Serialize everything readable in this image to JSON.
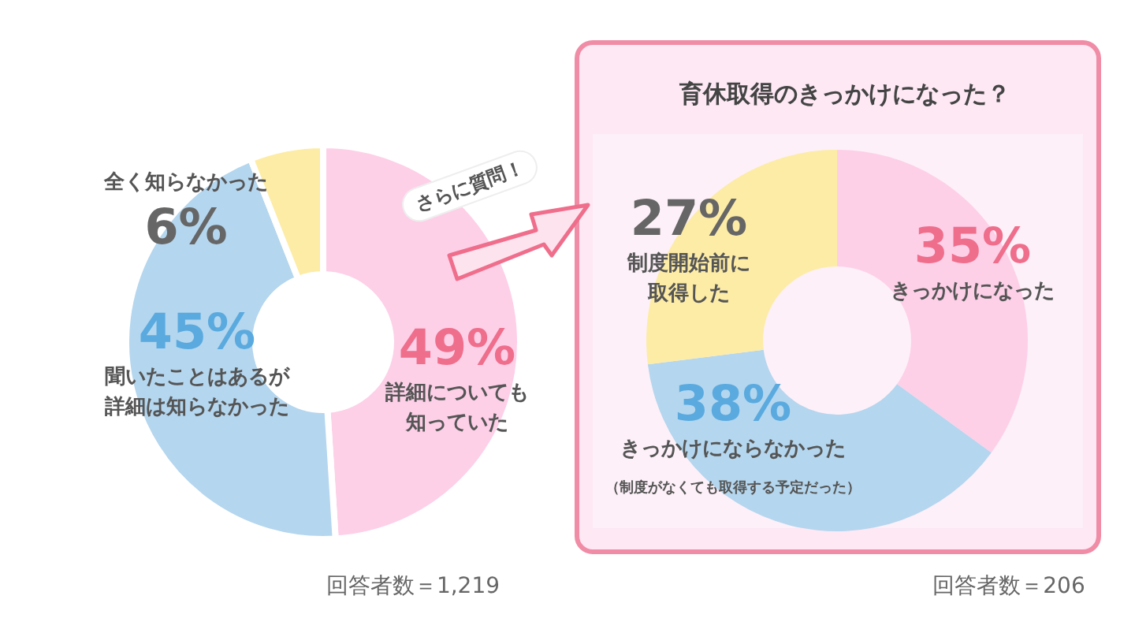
{
  "chart_data": [
    {
      "type": "donut",
      "categories": [
        "詳細についても知っていた",
        "聞いたことはあるが詳細は知らなかった",
        "全く知らなかった"
      ],
      "values": [
        49,
        45,
        6
      ],
      "colors": [
        "#fdd0e8",
        "#b4d6ee",
        "#fdeca6"
      ],
      "value_labels": [
        "49%",
        "45%",
        "6%"
      ],
      "legend": false,
      "annotations": [
        "さらに質問！",
        "回答者数＝1,219"
      ]
    },
    {
      "type": "donut",
      "title": "育休取得のきっかけになった？",
      "categories": [
        "きっかけになった",
        "きっかけにならなかった",
        "制度開始前に取得した"
      ],
      "values": [
        35,
        38,
        27
      ],
      "colors": [
        "#fdd0e8",
        "#b4d6ee",
        "#fdeca6"
      ],
      "value_labels": [
        "35%",
        "38%",
        "27%"
      ],
      "legend": false,
      "annotations": [
        "（制度がなくても取得する予定だった）",
        "回答者数＝206"
      ]
    }
  ]
}
